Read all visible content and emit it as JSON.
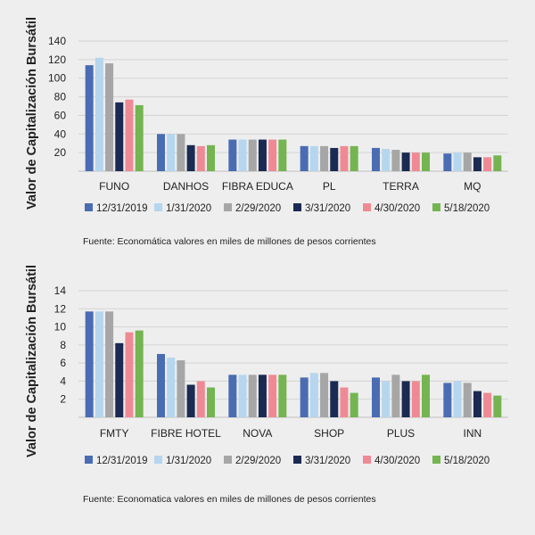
{
  "chart_data": [
    {
      "type": "bar",
      "ylabel": "Valor de Capitalización Bursátil",
      "ylim": [
        0,
        140
      ],
      "yticks": [
        20,
        40,
        60,
        80,
        100,
        120,
        140
      ],
      "grid": true,
      "legend_position": "bottom",
      "categories": [
        "FUNO",
        "DANHOS",
        "FIBRA EDUCA",
        "PL",
        "TERRA",
        "MQ"
      ],
      "series": [
        {
          "name": "12/31/2019",
          "values": [
            114,
            40,
            34,
            27,
            25,
            19
          ]
        },
        {
          "name": "1/31/2020",
          "values": [
            122,
            40,
            34,
            27,
            24,
            20
          ]
        },
        {
          "name": "2/29/2020",
          "values": [
            116,
            40,
            34,
            27,
            23,
            20
          ]
        },
        {
          "name": "3/31/2020",
          "values": [
            74,
            28,
            34,
            25,
            20,
            15
          ]
        },
        {
          "name": "4/30/2020",
          "values": [
            77,
            27,
            34,
            27,
            20,
            15
          ]
        },
        {
          "name": "5/18/2020",
          "values": [
            71,
            28,
            34,
            27,
            20,
            17
          ]
        }
      ],
      "note": "Fuente: Economática valores en miles de millones de pesos corrientes"
    },
    {
      "type": "bar",
      "ylabel": "Valor de Capitalización Bursátil",
      "ylim": [
        0,
        14
      ],
      "yticks": [
        2,
        4,
        6,
        8,
        10,
        12,
        14
      ],
      "grid": true,
      "legend_position": "bottom",
      "categories": [
        "FMTY",
        "FIBRE HOTEL",
        "NOVA",
        "SHOP",
        "PLUS",
        "INN"
      ],
      "series": [
        {
          "name": "12/31/2019",
          "values": [
            11.7,
            7.0,
            4.7,
            4.4,
            4.4,
            3.8
          ]
        },
        {
          "name": "1/31/2020",
          "values": [
            11.7,
            6.6,
            4.7,
            4.9,
            4.0,
            4.0
          ]
        },
        {
          "name": "2/29/2020",
          "values": [
            11.7,
            6.3,
            4.7,
            4.9,
            4.7,
            3.8
          ]
        },
        {
          "name": "3/31/2020",
          "values": [
            8.2,
            3.6,
            4.7,
            4.0,
            4.0,
            2.9
          ]
        },
        {
          "name": "4/30/2020",
          "values": [
            9.4,
            4.0,
            4.7,
            3.3,
            4.0,
            2.7
          ]
        },
        {
          "name": "5/18/2020",
          "values": [
            9.6,
            3.3,
            4.7,
            2.7,
            4.7,
            2.4
          ]
        }
      ],
      "note": "Fuente: Economatica valores en miles de millones de pesos corrientes"
    }
  ],
  "colors": [
    "#4a6cb3",
    "#b5d6ee",
    "#a6a6a6",
    "#1b2a52",
    "#ef8a94",
    "#74b451"
  ]
}
